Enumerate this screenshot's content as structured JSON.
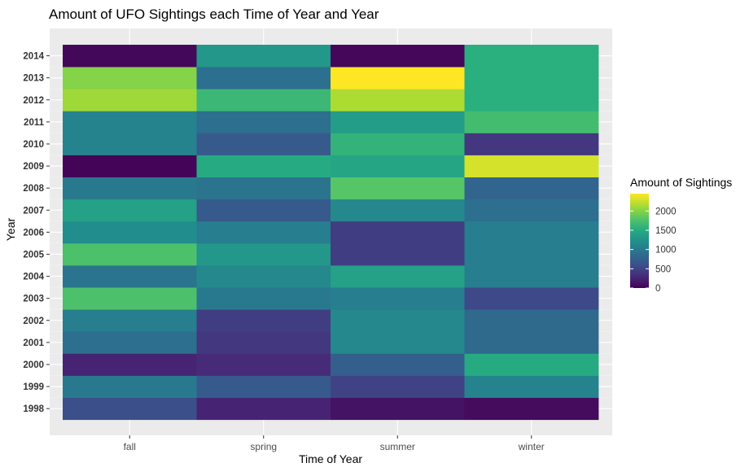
{
  "chart_data": {
    "type": "heatmap",
    "title": "Amount of UFO Sightings each Time of Year and Year",
    "xlabel": "Time of Year",
    "ylabel": "Year",
    "x_categories": [
      "fall",
      "spring",
      "summer",
      "winter"
    ],
    "y_categories": [
      "1998",
      "1999",
      "2000",
      "2001",
      "2002",
      "2003",
      "2004",
      "2005",
      "2006",
      "2007",
      "2008",
      "2009",
      "2010",
      "2011",
      "2012",
      "2013",
      "2014"
    ],
    "values": {
      "fall": [
        600,
        1000,
        250,
        900,
        1050,
        1750,
        950,
        1750,
        1200,
        1400,
        1000,
        30,
        1100,
        1100,
        2100,
        2000,
        50
      ],
      "spring": [
        250,
        700,
        300,
        400,
        450,
        1000,
        1150,
        1300,
        1050,
        700,
        950,
        1500,
        700,
        900,
        1650,
        900,
        1300
      ],
      "summer": [
        130,
        500,
        750,
        1150,
        1150,
        1050,
        1400,
        450,
        450,
        1150,
        1800,
        1450,
        1600,
        1350,
        2150,
        2450,
        40
      ],
      "winter": [
        70,
        1100,
        1500,
        850,
        850,
        550,
        1050,
        1050,
        1050,
        900,
        800,
        2300,
        400,
        1700,
        1550,
        1550,
        1550
      ]
    },
    "legend": {
      "title": "Amount of Sightings",
      "breaks": [
        "0",
        "500",
        "1000",
        "1500",
        "2000"
      ],
      "break_values": [
        0,
        500,
        1000,
        1500,
        2000
      ],
      "range": [
        0,
        2450
      ],
      "placement": "right"
    },
    "colorscale": "viridis",
    "grid": true,
    "panel_background": "#ebebeb"
  }
}
